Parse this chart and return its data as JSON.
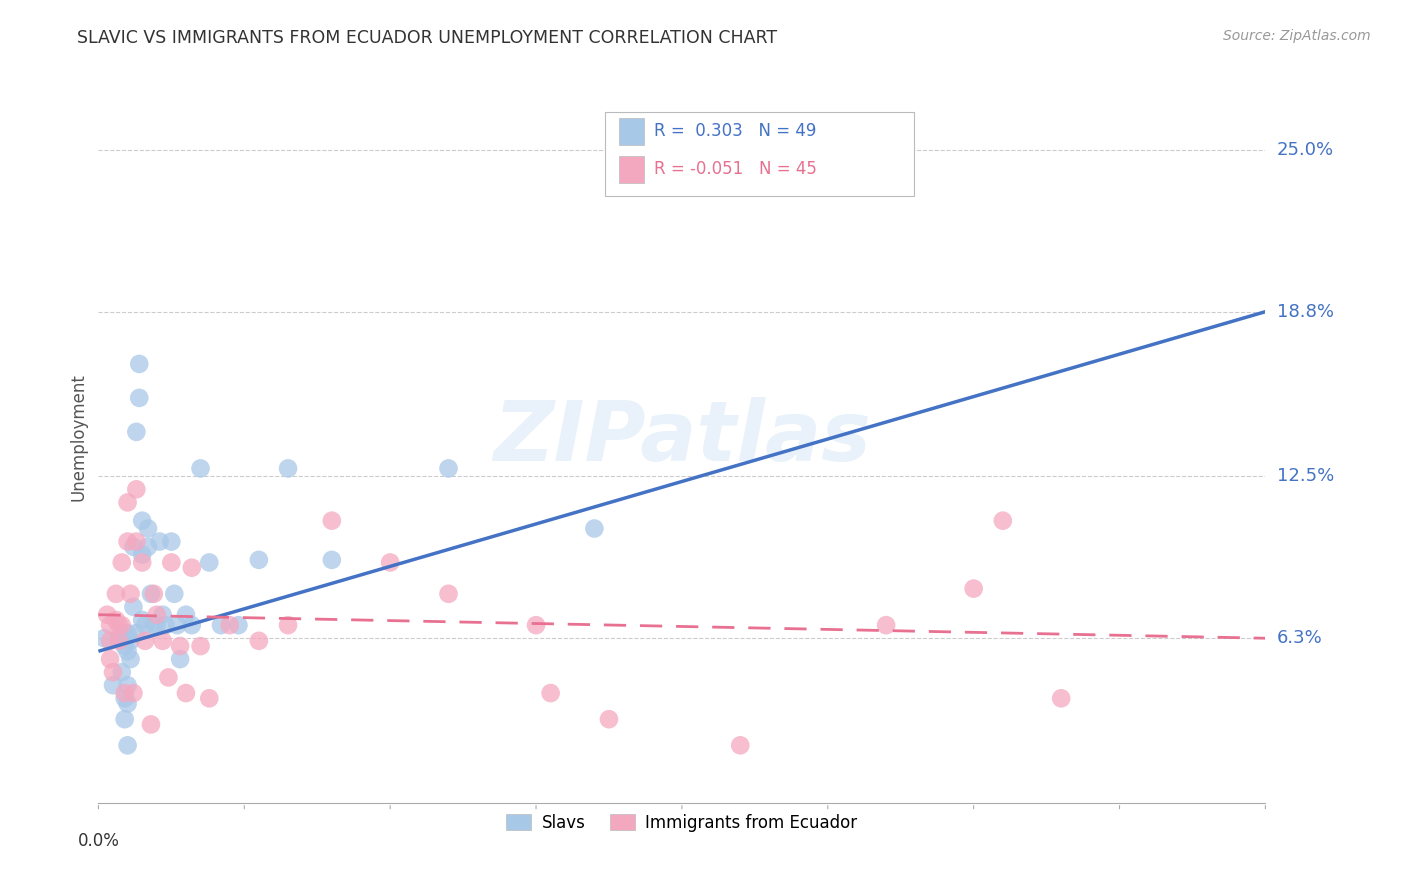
{
  "title": "SLAVIC VS IMMIGRANTS FROM ECUADOR UNEMPLOYMENT CORRELATION CHART",
  "source": "Source: ZipAtlas.com",
  "ylabel": "Unemployment",
  "ytick_labels": [
    "25.0%",
    "18.8%",
    "12.5%",
    "6.3%"
  ],
  "ytick_values": [
    0.25,
    0.188,
    0.125,
    0.063
  ],
  "xlim": [
    0.0,
    0.4
  ],
  "ylim": [
    0.0,
    0.28
  ],
  "slavs_color": "#a8c8e8",
  "ecuador_color": "#f4a8c0",
  "trend_slavs_color": "#4472c4",
  "trend_ecuador_color": "#e87090",
  "watermark": "ZIPatlas",
  "slavs_r": "0.303",
  "slavs_n": "49",
  "ecuador_r": "-0.051",
  "ecuador_n": "45",
  "trend_slavs_start_y": 0.058,
  "trend_slavs_end_y": 0.188,
  "trend_ecuador_start_y": 0.072,
  "trend_ecuador_end_y": 0.063,
  "slavs_x": [
    0.002,
    0.005,
    0.007,
    0.008,
    0.008,
    0.009,
    0.009,
    0.009,
    0.009,
    0.01,
    0.01,
    0.01,
    0.01,
    0.01,
    0.011,
    0.011,
    0.012,
    0.012,
    0.013,
    0.013,
    0.014,
    0.014,
    0.015,
    0.015,
    0.015,
    0.016,
    0.017,
    0.017,
    0.018,
    0.019,
    0.02,
    0.021,
    0.022,
    0.023,
    0.025,
    0.026,
    0.027,
    0.028,
    0.03,
    0.032,
    0.035,
    0.038,
    0.042,
    0.048,
    0.055,
    0.065,
    0.08,
    0.12,
    0.17
  ],
  "slavs_y": [
    0.063,
    0.045,
    0.063,
    0.063,
    0.05,
    0.04,
    0.032,
    0.065,
    0.06,
    0.065,
    0.058,
    0.045,
    0.038,
    0.022,
    0.062,
    0.055,
    0.098,
    0.075,
    0.142,
    0.065,
    0.168,
    0.155,
    0.108,
    0.095,
    0.07,
    0.068,
    0.105,
    0.098,
    0.08,
    0.068,
    0.068,
    0.1,
    0.072,
    0.068,
    0.1,
    0.08,
    0.068,
    0.055,
    0.072,
    0.068,
    0.128,
    0.092,
    0.068,
    0.068,
    0.093,
    0.128,
    0.093,
    0.128,
    0.105
  ],
  "ecuador_x": [
    0.003,
    0.004,
    0.004,
    0.004,
    0.005,
    0.006,
    0.006,
    0.007,
    0.007,
    0.008,
    0.008,
    0.009,
    0.01,
    0.01,
    0.011,
    0.012,
    0.013,
    0.013,
    0.015,
    0.016,
    0.018,
    0.019,
    0.02,
    0.022,
    0.024,
    0.025,
    0.028,
    0.03,
    0.032,
    0.035,
    0.038,
    0.045,
    0.055,
    0.065,
    0.08,
    0.1,
    0.12,
    0.15,
    0.155,
    0.175,
    0.22,
    0.27,
    0.3,
    0.31,
    0.33
  ],
  "ecuador_y": [
    0.072,
    0.068,
    0.062,
    0.055,
    0.05,
    0.08,
    0.07,
    0.068,
    0.062,
    0.092,
    0.068,
    0.042,
    0.115,
    0.1,
    0.08,
    0.042,
    0.12,
    0.1,
    0.092,
    0.062,
    0.03,
    0.08,
    0.072,
    0.062,
    0.048,
    0.092,
    0.06,
    0.042,
    0.09,
    0.06,
    0.04,
    0.068,
    0.062,
    0.068,
    0.108,
    0.092,
    0.08,
    0.068,
    0.042,
    0.032,
    0.022,
    0.068,
    0.082,
    0.108,
    0.04
  ]
}
